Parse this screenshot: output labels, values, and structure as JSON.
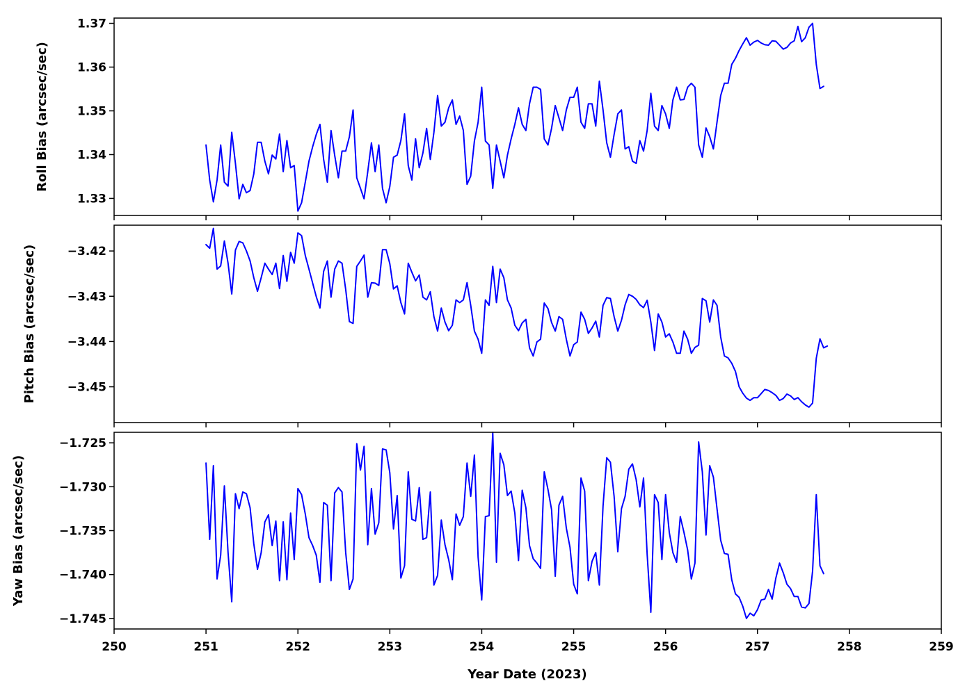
{
  "colors": {
    "line": "#0000ff",
    "axes": "#000000",
    "background": "#ffffff"
  },
  "xaxis": {
    "label": "Year Date (2023)",
    "xlim": [
      250,
      259
    ],
    "ticks": [
      250,
      251,
      252,
      253,
      254,
      255,
      256,
      257,
      258,
      259
    ],
    "tick_labels": [
      "250",
      "251",
      "252",
      "253",
      "254",
      "255",
      "256",
      "257",
      "258",
      "259"
    ]
  },
  "chart_data": [
    {
      "type": "line",
      "ylabel": "Roll Bias (arcsec/sec)",
      "ylim": [
        1.3261,
        1.3712
      ],
      "yticks": [
        1.33,
        1.34,
        1.35,
        1.36,
        1.37
      ],
      "ytick_labels": [
        "1.33",
        "1.34",
        "1.35",
        "1.36",
        "1.37"
      ],
      "grid": false,
      "x_start": 251.0,
      "x_step": 0.04,
      "y": [
        1.3422,
        1.3342,
        1.3292,
        1.3342,
        1.3422,
        1.3337,
        1.3328,
        1.3451,
        1.338,
        1.3299,
        1.3332,
        1.3313,
        1.3318,
        1.3356,
        1.3428,
        1.3428,
        1.3385,
        1.3356,
        1.3399,
        1.339,
        1.3447,
        1.3361,
        1.3432,
        1.337,
        1.3375,
        1.3271,
        1.329,
        1.3337,
        1.3385,
        1.3418,
        1.3446,
        1.3469,
        1.3389,
        1.3337,
        1.3455,
        1.3398,
        1.3347,
        1.3408,
        1.3408,
        1.3441,
        1.3502,
        1.3347,
        1.3323,
        1.3299,
        1.3361,
        1.3427,
        1.3361,
        1.3422,
        1.3323,
        1.329,
        1.3327,
        1.3394,
        1.3399,
        1.3432,
        1.3493,
        1.3375,
        1.3342,
        1.3436,
        1.337,
        1.3404,
        1.346,
        1.3389,
        1.3451,
        1.3535,
        1.3465,
        1.3474,
        1.3507,
        1.3525,
        1.3469,
        1.3488,
        1.3455,
        1.3332,
        1.3351,
        1.3431,
        1.3474,
        1.3554,
        1.3431,
        1.3422,
        1.3323,
        1.3422,
        1.3385,
        1.3347,
        1.3399,
        1.3436,
        1.3469,
        1.3507,
        1.3469,
        1.3455,
        1.3516,
        1.3554,
        1.3554,
        1.3549,
        1.3436,
        1.3422,
        1.346,
        1.3512,
        1.3484,
        1.3455,
        1.3502,
        1.3531,
        1.3531,
        1.3554,
        1.3474,
        1.346,
        1.3516,
        1.3516,
        1.3465,
        1.3568,
        1.3502,
        1.3427,
        1.3394,
        1.3446,
        1.3493,
        1.3502,
        1.3413,
        1.3418,
        1.3385,
        1.338,
        1.3432,
        1.3408,
        1.3455,
        1.354,
        1.3465,
        1.3455,
        1.3512,
        1.3493,
        1.346,
        1.3525,
        1.3554,
        1.3525,
        1.3526,
        1.3554,
        1.3563,
        1.3554,
        1.3422,
        1.3394,
        1.3461,
        1.3441,
        1.3413,
        1.3474,
        1.3535,
        1.3563,
        1.3563,
        1.3606,
        1.362,
        1.3638,
        1.3653,
        1.3667,
        1.365,
        1.3657,
        1.3661,
        1.3655,
        1.3651,
        1.365,
        1.366,
        1.3659,
        1.365,
        1.3641,
        1.3645,
        1.3655,
        1.366,
        1.3693,
        1.3658,
        1.3667,
        1.3691,
        1.37,
        1.3606,
        1.3551,
        1.3556
      ]
    },
    {
      "type": "line",
      "ylabel": "Pitch Bias (arcsec/sec)",
      "ylim": [
        -3.4579,
        -3.4143
      ],
      "yticks": [
        -3.42,
        -3.43,
        -3.44,
        -3.45
      ],
      "ytick_labels": [
        "−3.42",
        "−3.43",
        "−3.44",
        "−3.45"
      ],
      "grid": false,
      "x_start": 251.0,
      "x_step": 0.04,
      "y": [
        -3.4186,
        -3.4194,
        -3.415,
        -3.424,
        -3.4233,
        -3.4178,
        -3.4227,
        -3.4295,
        -3.4198,
        -3.4179,
        -3.4182,
        -3.42,
        -3.4222,
        -3.4259,
        -3.4289,
        -3.4259,
        -3.4227,
        -3.424,
        -3.4252,
        -3.4227,
        -3.4283,
        -3.421,
        -3.4267,
        -3.4203,
        -3.4227,
        -3.416,
        -3.4166,
        -3.421,
        -3.424,
        -3.4271,
        -3.4301,
        -3.4326,
        -3.4245,
        -3.4222,
        -3.4302,
        -3.424,
        -3.4222,
        -3.4227,
        -3.4285,
        -3.4356,
        -3.436,
        -3.4234,
        -3.4222,
        -3.4209,
        -3.4302,
        -3.427,
        -3.4271,
        -3.4276,
        -3.4197,
        -3.4197,
        -3.4228,
        -3.4284,
        -3.4277,
        -3.4314,
        -3.4339,
        -3.4227,
        -3.4247,
        -3.4266,
        -3.4253,
        -3.4302,
        -3.4308,
        -3.429,
        -3.4345,
        -3.4377,
        -3.4326,
        -3.4357,
        -3.4376,
        -3.4364,
        -3.4308,
        -3.4314,
        -3.4308,
        -3.427,
        -3.432,
        -3.4377,
        -3.4395,
        -3.4426,
        -3.4308,
        -3.432,
        -3.4234,
        -3.4314,
        -3.424,
        -3.4259,
        -3.4308,
        -3.4326,
        -3.4364,
        -3.4376,
        -3.4359,
        -3.4351,
        -3.4414,
        -3.4432,
        -3.4401,
        -3.4395,
        -3.4315,
        -3.4327,
        -3.4358,
        -3.4377,
        -3.4345,
        -3.4351,
        -3.4395,
        -3.4432,
        -3.4407,
        -3.4401,
        -3.4335,
        -3.4351,
        -3.4382,
        -3.437,
        -3.4355,
        -3.439,
        -3.432,
        -3.4303,
        -3.4305,
        -3.4345,
        -3.4377,
        -3.4353,
        -3.4319,
        -3.4296,
        -3.43,
        -3.4307,
        -3.4319,
        -3.4325,
        -3.4309,
        -3.4357,
        -3.442,
        -3.4339,
        -3.4357,
        -3.439,
        -3.4383,
        -3.4401,
        -3.4426,
        -3.4426,
        -3.4377,
        -3.4395,
        -3.4426,
        -3.4413,
        -3.4408,
        -3.4305,
        -3.431,
        -3.4357,
        -3.4308,
        -3.432,
        -3.439,
        -3.4432,
        -3.4436,
        -3.4448,
        -3.4466,
        -3.45,
        -3.4514,
        -3.4525,
        -3.453,
        -3.4524,
        -3.4524,
        -3.4515,
        -3.4506,
        -3.4508,
        -3.4513,
        -3.4519,
        -3.453,
        -3.4526,
        -3.4516,
        -3.452,
        -3.4528,
        -3.4524,
        -3.4533,
        -3.454,
        -3.4545,
        -3.4536,
        -3.4437,
        -3.4394,
        -3.4414,
        -3.441
      ]
    },
    {
      "type": "line",
      "ylabel": "Yaw Bias (arcsec/sec)",
      "ylim": [
        -1.7462,
        -1.7238
      ],
      "yticks": [
        -1.725,
        -1.73,
        -1.735,
        -1.74,
        -1.745
      ],
      "ytick_labels": [
        "−1.725",
        "−1.730",
        "−1.735",
        "−1.740",
        "−1.745"
      ],
      "grid": false,
      "x_start": 251.0,
      "x_step": 0.04,
      "y": [
        -1.7273,
        -1.736,
        -1.7276,
        -1.7405,
        -1.7378,
        -1.7299,
        -1.7375,
        -1.7431,
        -1.7308,
        -1.7325,
        -1.7306,
        -1.7308,
        -1.7324,
        -1.7365,
        -1.7394,
        -1.7375,
        -1.734,
        -1.7332,
        -1.7367,
        -1.7339,
        -1.7407,
        -1.734,
        -1.7406,
        -1.733,
        -1.7383,
        -1.7302,
        -1.7309,
        -1.7331,
        -1.7358,
        -1.7367,
        -1.7378,
        -1.7409,
        -1.7318,
        -1.7321,
        -1.7407,
        -1.7307,
        -1.7301,
        -1.7306,
        -1.7375,
        -1.7417,
        -1.7405,
        -1.7251,
        -1.7281,
        -1.7254,
        -1.7366,
        -1.7302,
        -1.7354,
        -1.7341,
        -1.7257,
        -1.7258,
        -1.7284,
        -1.7348,
        -1.731,
        -1.7404,
        -1.739,
        -1.7283,
        -1.7337,
        -1.7339,
        -1.7301,
        -1.736,
        -1.7358,
        -1.7306,
        -1.7412,
        -1.7401,
        -1.7338,
        -1.7366,
        -1.7383,
        -1.7406,
        -1.7331,
        -1.7344,
        -1.7334,
        -1.7273,
        -1.7311,
        -1.7264,
        -1.738,
        -1.7429,
        -1.7334,
        -1.7333,
        -1.7238,
        -1.7386,
        -1.7262,
        -1.7275,
        -1.731,
        -1.7305,
        -1.733,
        -1.7384,
        -1.7304,
        -1.7324,
        -1.7367,
        -1.7382,
        -1.7387,
        -1.7393,
        -1.7283,
        -1.7303,
        -1.7326,
        -1.7402,
        -1.7321,
        -1.7311,
        -1.7347,
        -1.7369,
        -1.7411,
        -1.7422,
        -1.729,
        -1.7305,
        -1.7407,
        -1.7385,
        -1.7375,
        -1.7412,
        -1.7322,
        -1.7267,
        -1.7272,
        -1.7311,
        -1.7374,
        -1.7325,
        -1.7311,
        -1.728,
        -1.7274,
        -1.7292,
        -1.7323,
        -1.729,
        -1.7377,
        -1.7443,
        -1.7309,
        -1.7318,
        -1.7383,
        -1.7309,
        -1.7352,
        -1.7375,
        -1.7386,
        -1.7334,
        -1.7352,
        -1.7372,
        -1.7405,
        -1.7387,
        -1.7249,
        -1.7283,
        -1.7355,
        -1.7276,
        -1.7289,
        -1.7325,
        -1.7361,
        -1.7376,
        -1.7377,
        -1.7406,
        -1.7422,
        -1.7426,
        -1.7436,
        -1.745,
        -1.7444,
        -1.7447,
        -1.744,
        -1.7429,
        -1.7428,
        -1.7417,
        -1.7428,
        -1.7404,
        -1.7387,
        -1.7398,
        -1.7411,
        -1.7416,
        -1.7425,
        -1.7425,
        -1.7437,
        -1.7438,
        -1.7433,
        -1.7396,
        -1.7309,
        -1.739,
        -1.7399
      ]
    }
  ]
}
